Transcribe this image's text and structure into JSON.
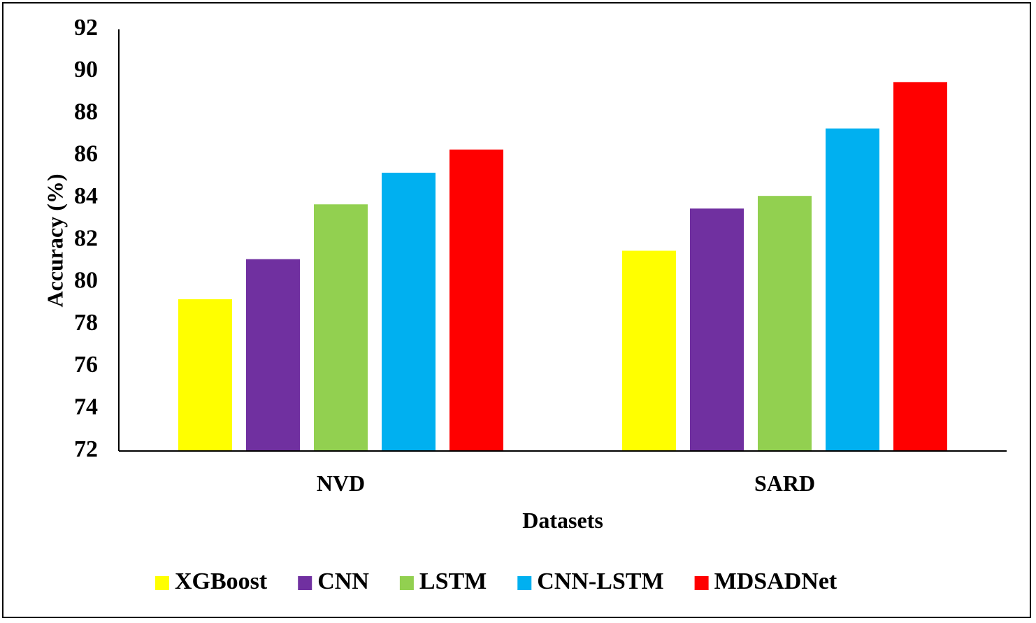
{
  "chart_data": {
    "type": "bar",
    "categories": [
      "NVD",
      "SARD"
    ],
    "series": [
      {
        "name": "XGBoost",
        "color": "#FFFF00",
        "values": [
          79.2,
          81.5
        ]
      },
      {
        "name": "CNN",
        "color": "#7030A0",
        "values": [
          81.1,
          83.5
        ]
      },
      {
        "name": "LSTM",
        "color": "#92D050",
        "values": [
          83.7,
          84.1
        ]
      },
      {
        "name": "CNN-LSTM",
        "color": "#00B0F0",
        "values": [
          85.2,
          87.3
        ]
      },
      {
        "name": "MDSADNet",
        "color": "#FF0000",
        "values": [
          86.3,
          89.5
        ]
      }
    ],
    "xlabel": "Datasets",
    "ylabel": "Accuracy (%)",
    "ylim": [
      72,
      92
    ],
    "yticks": [
      72,
      74,
      76,
      78,
      80,
      82,
      84,
      86,
      88,
      90,
      92
    ],
    "grid": false,
    "legend_position": "bottom"
  }
}
